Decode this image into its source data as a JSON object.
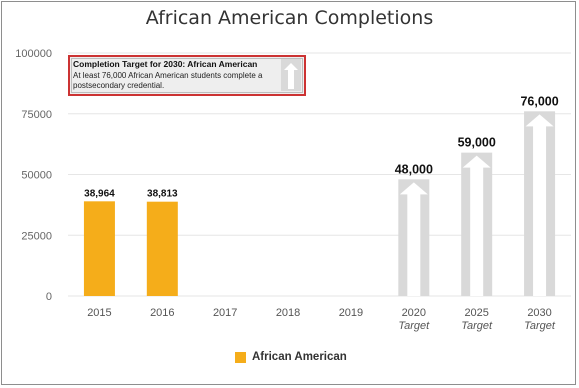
{
  "title": "African American Completions",
  "chart_data": {
    "type": "bar",
    "title": "African American Completions",
    "xlabel": "",
    "ylabel": "",
    "ylim": [
      0,
      100000
    ],
    "yticks": [
      "0",
      "25000",
      "50000",
      "75000",
      "100000"
    ],
    "grid": true,
    "legend_position": "bottom-center",
    "categories": [
      {
        "label": "2015",
        "sub": ""
      },
      {
        "label": "2016",
        "sub": ""
      },
      {
        "label": "2017",
        "sub": ""
      },
      {
        "label": "2018",
        "sub": ""
      },
      {
        "label": "2019",
        "sub": ""
      },
      {
        "label": "2020",
        "sub": "Target"
      },
      {
        "label": "2025",
        "sub": "Target"
      },
      {
        "label": "2030",
        "sub": "Target"
      }
    ],
    "series": [
      {
        "name": "African American",
        "color": "#f5ad1a",
        "values": [
          38964,
          38813,
          null,
          null,
          null,
          null,
          null,
          null
        ],
        "labels": [
          "38,964",
          "38,813",
          "",
          "",
          "",
          "",
          "",
          ""
        ]
      },
      {
        "name": "",
        "color": "#d9d9d9",
        "style": "target-arrow",
        "values": [
          null,
          null,
          null,
          null,
          null,
          48000,
          59000,
          76000
        ],
        "labels": [
          "",
          "",
          "",
          "",
          "",
          "48,000",
          "59,000",
          "76,000"
        ]
      }
    ],
    "annotation": {
      "title": "Completion Target for 2030: African American",
      "text": "At least 76,000 African American students complete a postsecondary credential."
    }
  },
  "legend": {
    "label": "African American",
    "color": "#f5ad1a"
  },
  "colors": {
    "actual": "#f5ad1a",
    "target": "#d9d9d9",
    "target_arrow": "#ffffff",
    "grid": "#e6e6e6",
    "callout_border": "#cc3333"
  }
}
